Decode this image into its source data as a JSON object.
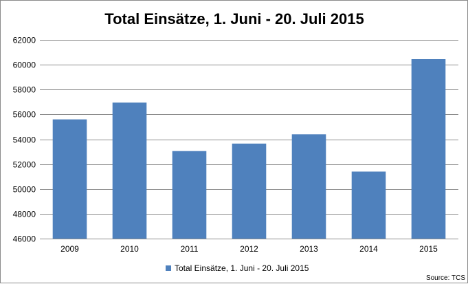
{
  "chart_data": {
    "type": "bar",
    "title": "Total Einsätze, 1. Juni - 20. Juli 2015",
    "xlabel": "",
    "ylabel": "",
    "categories": [
      "2009",
      "2010",
      "2011",
      "2012",
      "2013",
      "2014",
      "2015"
    ],
    "series": [
      {
        "name": "Total Einsätze, 1. Juni - 20. Juli 2015",
        "values": [
          55600,
          56950,
          53050,
          53650,
          54400,
          51400,
          60450
        ],
        "color": "#4f81bd"
      }
    ],
    "ylim": [
      46000,
      62000
    ],
    "yticks": [
      "46000",
      "48000",
      "50000",
      "52000",
      "54000",
      "56000",
      "58000",
      "60000",
      "62000"
    ],
    "grid": true,
    "gridColor": "#8c8c8c",
    "legend_position": "bottom",
    "source": "Source: TCS"
  }
}
